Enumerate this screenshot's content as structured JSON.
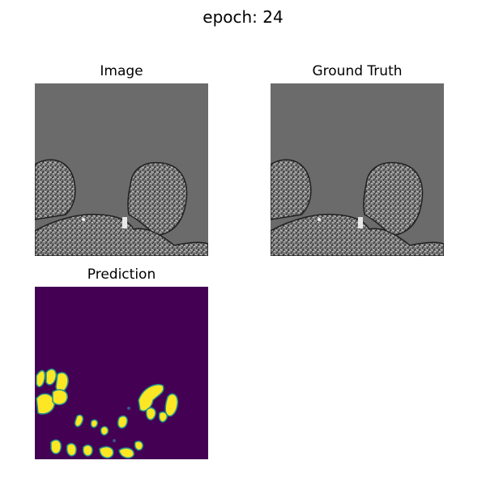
{
  "figure": {
    "suptitle": "epoch: 24"
  },
  "panels": [
    {
      "title": "Image",
      "kind": "grayscale-mri-slice",
      "colormap": "gray"
    },
    {
      "title": "Ground Truth",
      "kind": "grayscale-mri-slice",
      "colormap": "gray"
    },
    {
      "title": "Prediction",
      "kind": "segmentation-probability-map",
      "colormap": "viridis"
    }
  ],
  "colors": {
    "background_gray": "#6b6b6b",
    "viridis_low": "#440154",
    "viridis_mid": "#21918c",
    "viridis_high": "#fde725"
  }
}
